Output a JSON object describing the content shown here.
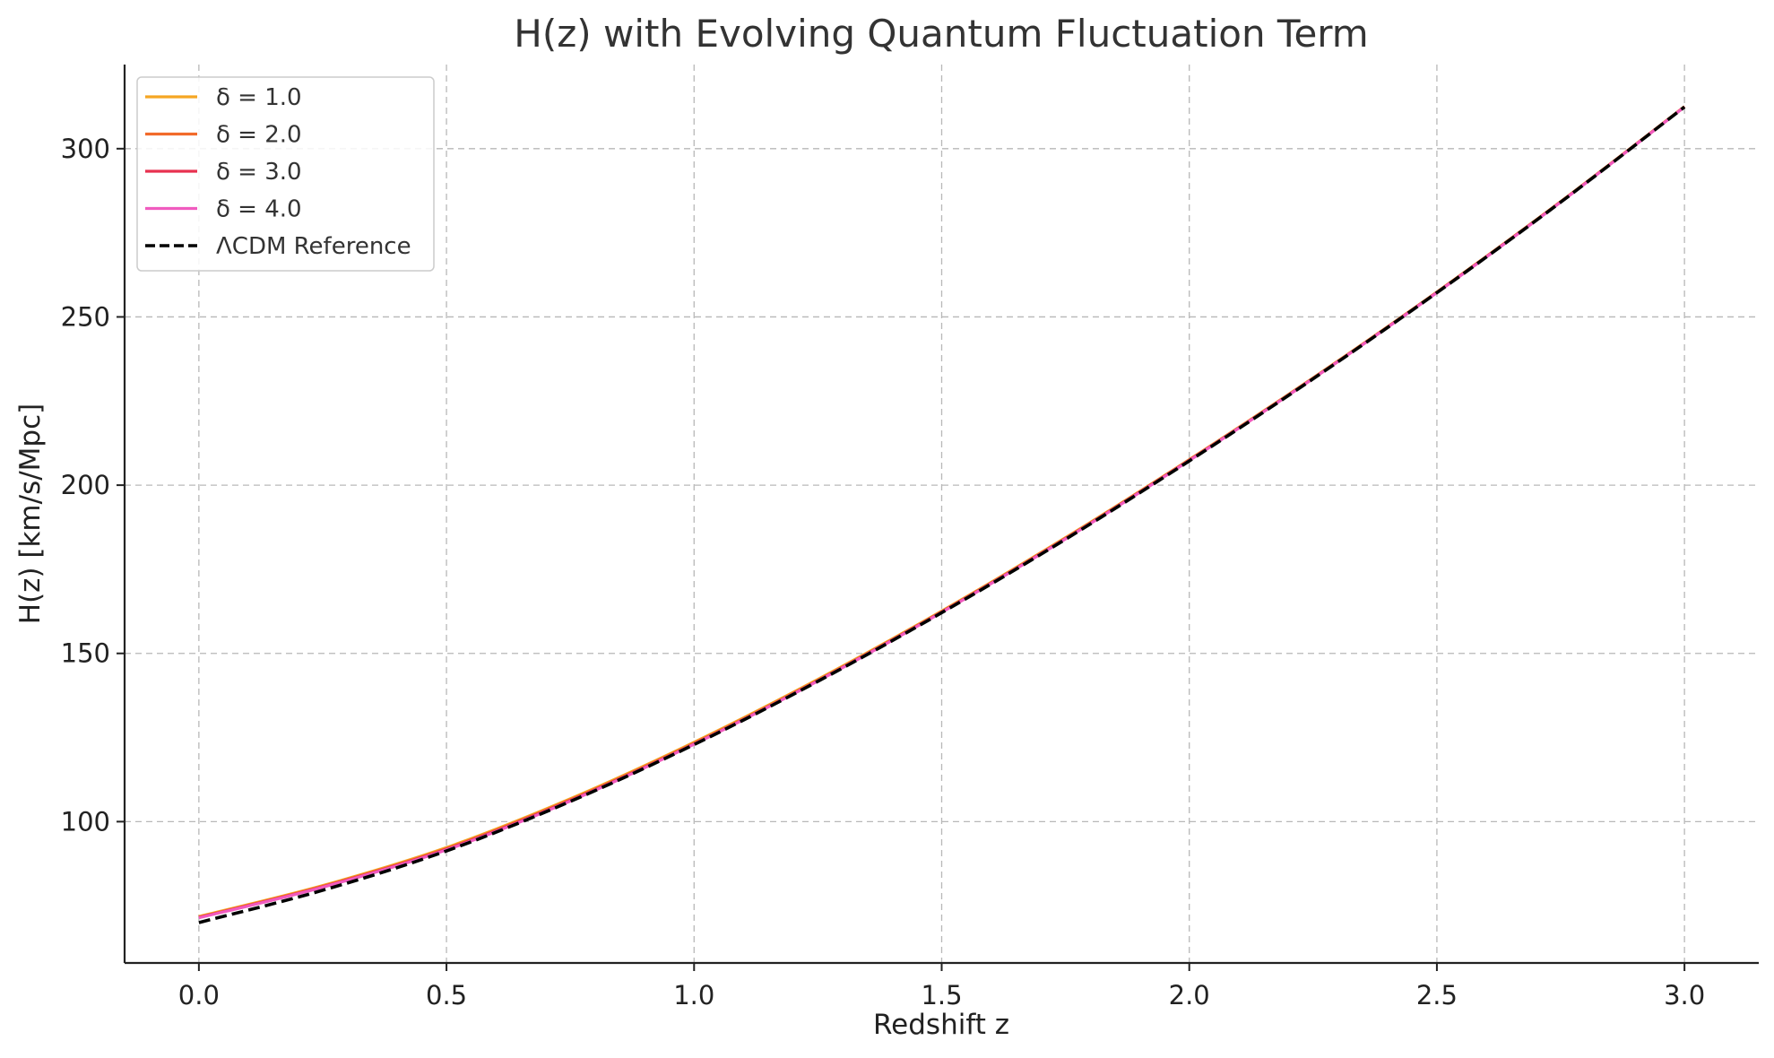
{
  "chart_data": {
    "type": "line",
    "title": "H(z) with Evolving Quantum Fluctuation Term",
    "xlabel": "Redshift z",
    "ylabel": "H(z) [km/s/Mpc]",
    "xlim": [
      -0.15,
      3.15
    ],
    "ylim": [
      58,
      325
    ],
    "x_ticks": [
      0.0,
      0.5,
      1.0,
      1.5,
      2.0,
      2.5,
      3.0
    ],
    "x_tick_labels": [
      "0.0",
      "0.5",
      "1.0",
      "1.5",
      "2.0",
      "2.5",
      "3.0"
    ],
    "y_ticks": [
      100,
      150,
      200,
      250,
      300
    ],
    "y_tick_labels": [
      "100",
      "150",
      "200",
      "250",
      "300"
    ],
    "grid": true,
    "legend_position": "top-left",
    "x": [
      0.0,
      0.25,
      0.5,
      0.75,
      1.0,
      1.25,
      1.5,
      1.75,
      2.0,
      2.25,
      2.5,
      2.75,
      3.0
    ],
    "series": [
      {
        "name": "δ = 1.0",
        "color": "#f5a623",
        "style": "solid",
        "values": [
          71.8,
          81.0,
          92.3,
          106.8,
          123.6,
          142.3,
          162.6,
          184.4,
          207.6,
          231.9,
          257.4,
          284.3,
          312.5
        ]
      },
      {
        "name": "δ = 2.0",
        "color": "#f26b2b",
        "style": "solid",
        "values": [
          71.6,
          80.8,
          92.0,
          106.5,
          123.3,
          142.0,
          162.4,
          184.2,
          207.5,
          231.8,
          257.3,
          284.2,
          312.5
        ]
      },
      {
        "name": "δ = 3.0",
        "color": "#e8314f",
        "style": "solid",
        "values": [
          71.5,
          80.6,
          91.8,
          106.3,
          123.1,
          141.9,
          162.3,
          184.1,
          207.4,
          231.7,
          257.3,
          284.2,
          312.4
        ]
      },
      {
        "name": "δ = 4.0",
        "color": "#f05bbf",
        "style": "solid",
        "values": [
          71.4,
          80.5,
          91.6,
          106.1,
          123.0,
          141.8,
          162.2,
          184.0,
          207.3,
          231.7,
          257.2,
          284.1,
          312.4
        ]
      },
      {
        "name": "ΛCDM Reference",
        "color": "#000000",
        "style": "dashed",
        "values": [
          70.0,
          79.6,
          91.3,
          106.0,
          122.9,
          141.7,
          162.1,
          183.9,
          207.2,
          231.6,
          257.2,
          284.1,
          312.4
        ]
      }
    ]
  }
}
